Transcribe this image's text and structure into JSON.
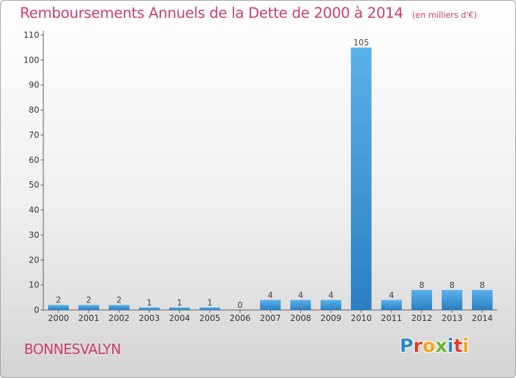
{
  "header": {
    "title": "Remboursements Annuels de la Dette de 2000 à 2014",
    "unit": "(en milliers d'€)"
  },
  "footer": {
    "commune": "BONNESVALYN",
    "logo_text": "Proxiti",
    "logo_colors": [
      "#2f86c8",
      "#e6392b",
      "#f2a51a",
      "#6bb02e",
      "#2f86c8",
      "#e6392b",
      "#f2a51a"
    ]
  },
  "colors": {
    "title": "#cc3d6c",
    "bar_light": "#5ab2ec",
    "bar_dark": "#2a7fc1"
  },
  "chart_data": {
    "type": "bar",
    "categories": [
      "2000",
      "2001",
      "2002",
      "2003",
      "2004",
      "2005",
      "2006",
      "2007",
      "2008",
      "2009",
      "2010",
      "2011",
      "2012",
      "2013",
      "2014"
    ],
    "values": [
      2,
      2,
      2,
      1,
      1,
      1,
      0,
      4,
      4,
      4,
      105,
      4,
      8,
      8,
      8
    ],
    "yticks": [
      "0",
      "10",
      "20",
      "30",
      "40",
      "50",
      "60",
      "70",
      "80",
      "90",
      "100",
      "110"
    ],
    "ylim": [
      0,
      110
    ],
    "grid": false
  }
}
